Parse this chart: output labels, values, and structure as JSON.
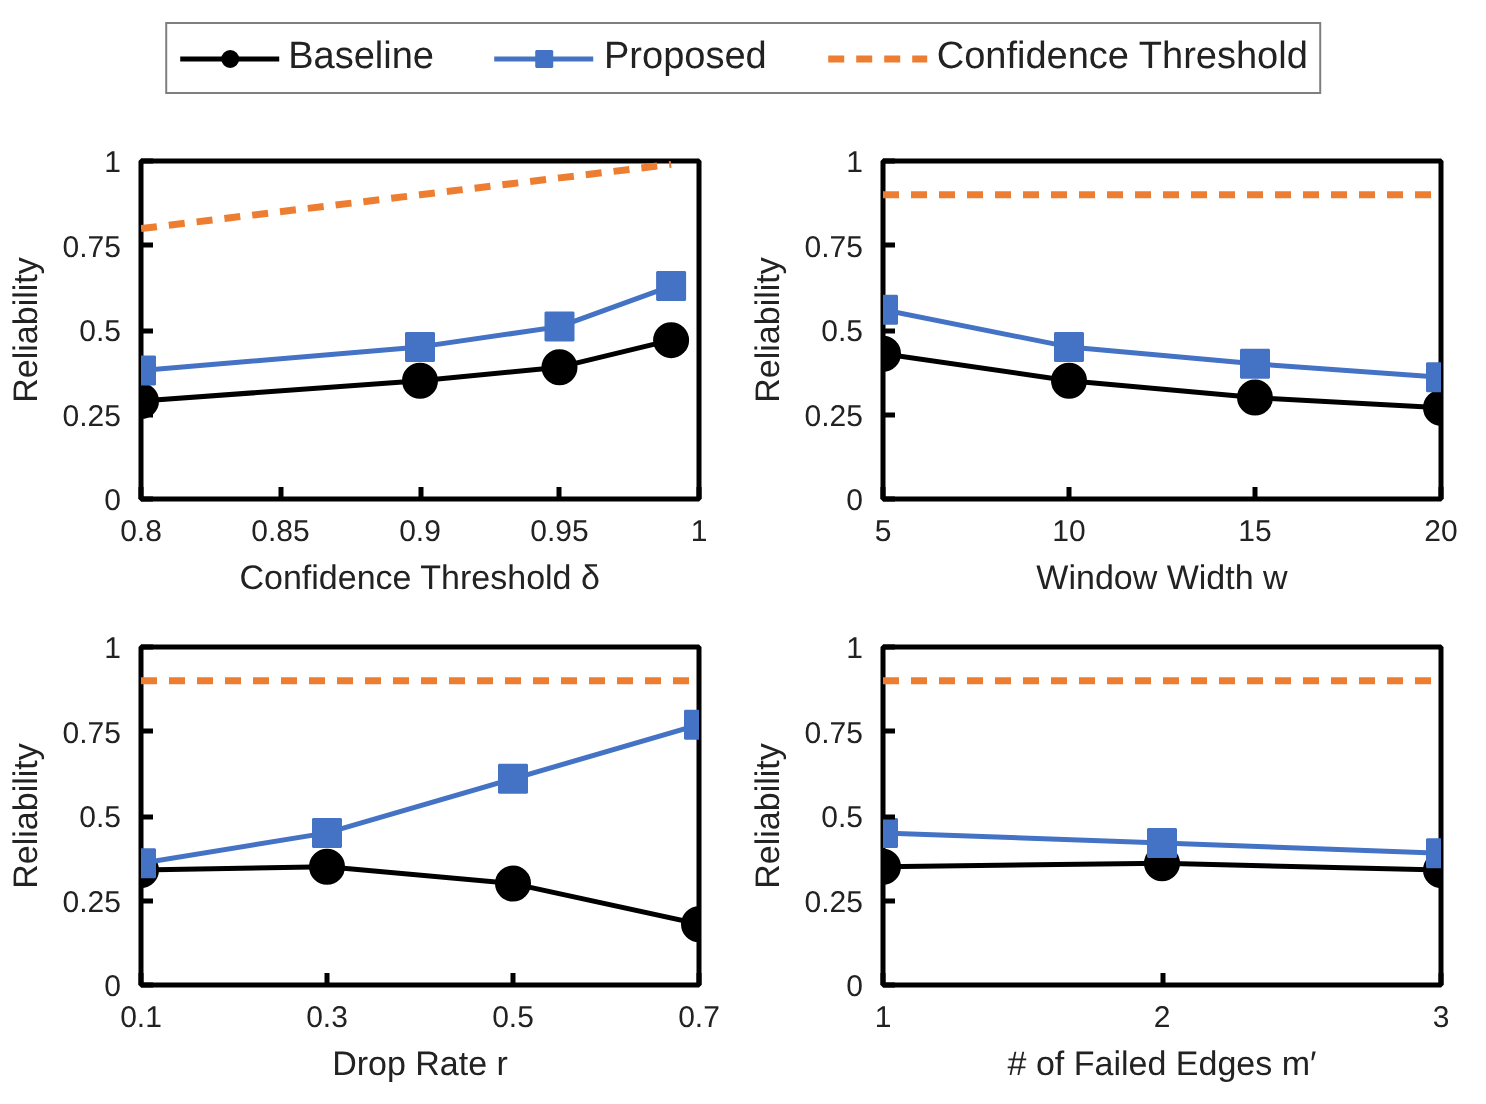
{
  "chart_data": [
    {
      "type": "line",
      "x": [
        0.8,
        0.9,
        0.95,
        0.99
      ],
      "xlabel": "Confidence Threshold δ",
      "ylabel": "Reliability",
      "xlim": [
        0.8,
        1
      ],
      "xticks": [
        0.8,
        0.85,
        0.9,
        0.95,
        1
      ],
      "ylim": [
        0,
        1
      ],
      "yticks": [
        0,
        0.25,
        0.5,
        0.75,
        1
      ],
      "grid": false,
      "legend": "top",
      "series": [
        {
          "name": "Baseline",
          "color": "#000000",
          "marker": "circle",
          "line_style": "solid",
          "values": [
            0.29,
            0.35,
            0.39,
            0.47
          ]
        },
        {
          "name": "Proposed",
          "color": "#4472c4",
          "marker": "square",
          "line_style": "solid",
          "values": [
            0.38,
            0.45,
            0.51,
            0.63
          ]
        },
        {
          "name": "Confidence Threshold",
          "color": "#ed7d31",
          "marker": "none",
          "line_style": "dashed",
          "values": [
            0.8,
            0.9,
            0.95,
            0.99
          ]
        }
      ]
    },
    {
      "type": "line",
      "x": [
        5,
        10,
        15,
        20
      ],
      "xlabel": "Window Width w",
      "ylabel": "Reliability",
      "xlim": [
        5,
        20
      ],
      "xticks": [
        5,
        10,
        15,
        20
      ],
      "ylim": [
        0,
        1
      ],
      "yticks": [
        0,
        0.25,
        0.5,
        0.75,
        1
      ],
      "grid": false,
      "series": [
        {
          "color": "#000000",
          "marker": "circle",
          "line_style": "solid",
          "values": [
            0.43,
            0.35,
            0.3,
            0.27
          ]
        },
        {
          "color": "#4472c4",
          "marker": "square",
          "line_style": "solid",
          "values": [
            0.56,
            0.45,
            0.4,
            0.36
          ]
        },
        {
          "color": "#ed7d31",
          "marker": "none",
          "line_style": "dashed",
          "values": [
            0.9,
            0.9,
            0.9,
            0.9
          ]
        }
      ]
    },
    {
      "type": "line",
      "x": [
        0.1,
        0.3,
        0.5,
        0.7
      ],
      "xlabel": "Drop Rate r",
      "ylabel": "Reliability",
      "xlim": [
        0.1,
        0.7
      ],
      "xticks": [
        0.1,
        0.3,
        0.5,
        0.7
      ],
      "ylim": [
        0,
        1
      ],
      "yticks": [
        0,
        0.25,
        0.5,
        0.75,
        1
      ],
      "grid": false,
      "series": [
        {
          "color": "#000000",
          "marker": "circle",
          "line_style": "solid",
          "values": [
            0.34,
            0.35,
            0.3,
            0.18
          ]
        },
        {
          "color": "#4472c4",
          "marker": "square",
          "line_style": "solid",
          "values": [
            0.36,
            0.45,
            0.61,
            0.77
          ]
        },
        {
          "color": "#ed7d31",
          "marker": "none",
          "line_style": "dashed",
          "values": [
            0.9,
            0.9,
            0.9,
            0.9
          ]
        }
      ]
    },
    {
      "type": "line",
      "x": [
        1,
        2,
        3
      ],
      "xlabel": "# of Failed Edges m′",
      "ylabel": "Reliability",
      "xlim": [
        1,
        3
      ],
      "xticks": [
        1,
        2,
        3
      ],
      "ylim": [
        0,
        1
      ],
      "yticks": [
        0,
        0.25,
        0.5,
        0.75,
        1
      ],
      "grid": false,
      "series": [
        {
          "color": "#000000",
          "marker": "circle",
          "line_style": "solid",
          "values": [
            0.35,
            0.36,
            0.34
          ]
        },
        {
          "color": "#4472c4",
          "marker": "square",
          "line_style": "solid",
          "values": [
            0.45,
            0.42,
            0.39
          ]
        },
        {
          "color": "#ed7d31",
          "marker": "none",
          "line_style": "dashed",
          "values": [
            0.9,
            0.9,
            0.9
          ]
        }
      ]
    }
  ]
}
